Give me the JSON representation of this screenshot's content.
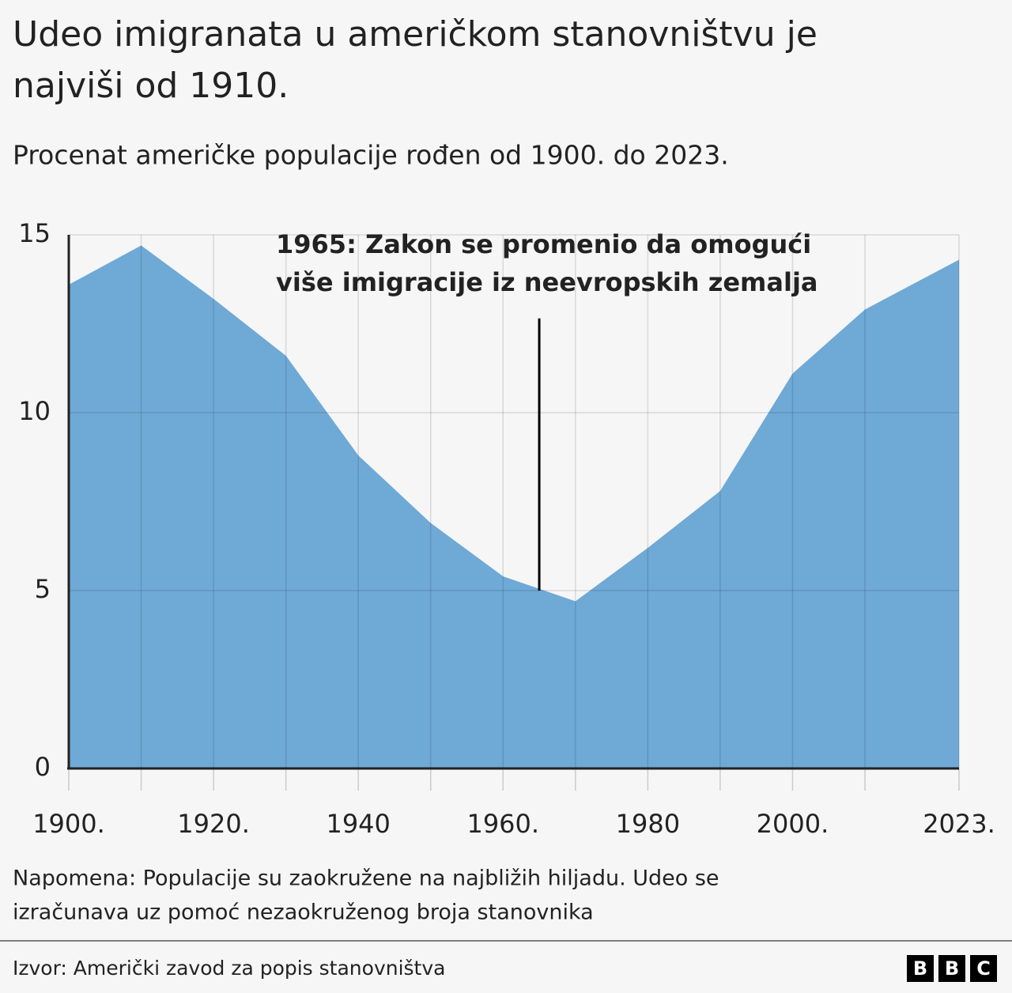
{
  "chart_data": {
    "type": "area",
    "title": [
      "Udeo imigranata u američkom stanovništvu je",
      "najviši od 1910."
    ],
    "subtitle": "Procenat američke populacije rođen od 1900. do 2023.",
    "x": [
      1900,
      1910,
      1920,
      1930,
      1940,
      1950,
      1960,
      1970,
      1980,
      1990,
      2000,
      2010,
      2023
    ],
    "series": [
      {
        "color": "#6fa9d6",
        "values": [
          13.6,
          14.7,
          13.2,
          11.6,
          8.8,
          6.9,
          5.4,
          4.7,
          6.2,
          7.8,
          11.1,
          12.9,
          14.3
        ]
      }
    ],
    "xlim": [
      1900,
      2023
    ],
    "xticks": [
      {
        "value": 1900,
        "label": "1900."
      },
      1910,
      {
        "value": 1920,
        "label": "1920."
      },
      1930,
      {
        "value": 1940,
        "label": "1940"
      },
      1950,
      {
        "value": 1960,
        "label": "1960."
      },
      1970,
      {
        "value": 1980,
        "label": "1980"
      },
      1990,
      {
        "value": 2000,
        "label": "2000."
      },
      2010,
      {
        "value": 2023,
        "label": "2023."
      }
    ],
    "ylim": [
      0,
      15
    ],
    "yticks": [
      0,
      5,
      10,
      15
    ],
    "grid": true,
    "annotation": {
      "text": [
        "1965: Zakon se promenio da omogući",
        "više imigracije iz neevropskih zemalja"
      ],
      "x": 1965,
      "y": [
        5,
        12.65
      ]
    },
    "note": [
      "Napomena: Populacije su zaokružene na najbližih hiljadu. Udeo se",
      "izračunava uz pomoć nezaokruženog broja stanovnika"
    ],
    "source": "Izvor: Američki zavod za popis stanovništva",
    "logo": [
      "B",
      "B",
      "C"
    ]
  }
}
